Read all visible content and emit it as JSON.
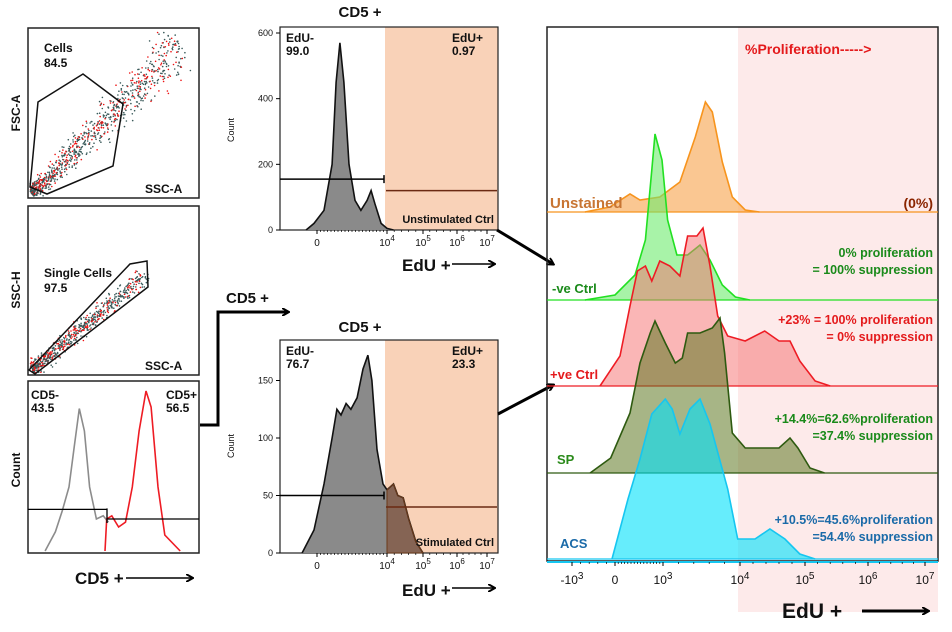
{
  "connector_label": "CD5 +",
  "chart_data": [
    {
      "type": "scatter",
      "title": "",
      "xlabel": "SSC-A",
      "ylabel": "FSC-A",
      "gate": {
        "name": "Cells",
        "value": "84.5"
      }
    },
    {
      "type": "scatter",
      "title": "",
      "xlabel": "SSC-A",
      "ylabel": "SSC-H",
      "gate": {
        "name": "Single Cells",
        "value": "97.5"
      }
    },
    {
      "type": "area",
      "title": "",
      "xlabel": "CD5 +",
      "ylabel": "Count",
      "gates": [
        {
          "name": "CD5-",
          "value": "43.5",
          "level": 26
        },
        {
          "name": "CD5+",
          "value": "56.5",
          "level": 20
        }
      ],
      "series": [
        {
          "name": "CD5-",
          "stroke": "#8c8c8c",
          "fill": "none",
          "points": [
            [
              10,
              0
            ],
            [
              16,
              12
            ],
            [
              20,
              25
            ],
            [
              24,
              40
            ],
            [
              27,
              65
            ],
            [
              30,
              89
            ],
            [
              33,
              75
            ],
            [
              36,
              40
            ],
            [
              40,
              20
            ],
            [
              44,
              22
            ],
            [
              47,
              18
            ]
          ]
        },
        {
          "name": "CD5+",
          "stroke": "#ee1c24",
          "fill": "none",
          "points": [
            [
              45,
              0
            ],
            [
              46,
              20
            ],
            [
              49,
              22
            ],
            [
              53,
              15
            ],
            [
              57,
              18
            ],
            [
              61,
              40
            ],
            [
              65,
              75
            ],
            [
              69,
              100
            ],
            [
              72,
              90
            ],
            [
              76,
              40
            ],
            [
              80,
              10
            ],
            [
              89,
              0
            ]
          ]
        }
      ]
    },
    {
      "type": "area",
      "title": "CD5 +",
      "xlabel": "EdU +",
      "ylabel": "Count",
      "ylim": [
        0,
        600
      ],
      "yticks": [
        0,
        200,
        400,
        600
      ],
      "xticks": [
        {
          "value": 0,
          "base": "0",
          "exp": ""
        },
        {
          "value": 4,
          "base": "10",
          "exp": "4"
        },
        {
          "value": 5,
          "base": "10",
          "exp": "5"
        },
        {
          "value": 6,
          "base": "10",
          "exp": "6"
        },
        {
          "value": 7,
          "base": "10",
          "exp": "7"
        }
      ],
      "gates": [
        {
          "name": "EdU-",
          "value": "99.0",
          "level": 155
        },
        {
          "name": "EdU+",
          "value": "0.97",
          "level": 120
        }
      ],
      "annotation": "Unstimulated Ctrl",
      "series": [
        {
          "name": "Unstimulated Ctrl",
          "stroke": "#111111",
          "fill": "#8a8a8a",
          "points": [
            [
              -0.33,
              0
            ],
            [
              -0.09,
              20
            ],
            [
              0.4,
              60
            ],
            [
              0.86,
              200
            ],
            [
              1.09,
              450
            ],
            [
              1.31,
              570
            ],
            [
              1.54,
              450
            ],
            [
              1.83,
              200
            ],
            [
              2.17,
              90
            ],
            [
              2.51,
              60
            ],
            [
              2.86,
              90
            ],
            [
              3.09,
              120
            ],
            [
              3.31,
              80
            ],
            [
              3.66,
              20
            ],
            [
              4,
              5
            ],
            [
              4.18,
              0
            ]
          ]
        }
      ]
    },
    {
      "type": "area",
      "title": "CD5 +",
      "xlabel": "EdU +",
      "ylabel": "Count",
      "ylim": [
        0,
        180
      ],
      "yticks": [
        0,
        50,
        100,
        150
      ],
      "xticks": [
        {
          "value": 0,
          "base": "0",
          "exp": ""
        },
        {
          "value": 4,
          "base": "10",
          "exp": "4"
        },
        {
          "value": 5,
          "base": "10",
          "exp": "5"
        },
        {
          "value": 6,
          "base": "10",
          "exp": "6"
        },
        {
          "value": 7,
          "base": "10",
          "exp": "7"
        }
      ],
      "gates": [
        {
          "name": "EdU-",
          "value": "76.7",
          "level": 50
        },
        {
          "name": "EdU+",
          "value": "23.3",
          "level": 40
        }
      ],
      "annotation": "Stimulated Ctrl",
      "series": [
        {
          "name": "Stimulated Ctrl",
          "stroke": "#111111",
          "fill": "#8a8a8a",
          "points": [
            [
              -0.45,
              0
            ],
            [
              -0.09,
              20
            ],
            [
              0.4,
              60
            ],
            [
              0.86,
              100
            ],
            [
              1.14,
              125
            ],
            [
              1.37,
              120
            ],
            [
              1.66,
              130
            ],
            [
              1.94,
              125
            ],
            [
              2.29,
              135
            ],
            [
              2.63,
              160
            ],
            [
              2.91,
              172
            ],
            [
              3.14,
              150
            ],
            [
              3.43,
              90
            ],
            [
              3.77,
              60
            ],
            [
              4,
              55
            ],
            [
              4.18,
              60
            ],
            [
              4.3,
              50
            ],
            [
              4.45,
              48
            ],
            [
              4.6,
              30
            ],
            [
              4.8,
              10
            ],
            [
              5,
              0
            ]
          ]
        }
      ]
    },
    {
      "type": "area",
      "title": "%Proliferation----->",
      "xlabel": "EdU +",
      "ylabel": "",
      "xticks": [
        {
          "value": -1,
          "base": "-10",
          "exp": "3"
        },
        {
          "value": 0,
          "base": "0",
          "exp": ""
        },
        {
          "value": 3,
          "base": "10",
          "exp": "3"
        },
        {
          "value": 4,
          "base": "10",
          "exp": "4"
        },
        {
          "value": 5,
          "base": "10",
          "exp": "5"
        },
        {
          "value": 6,
          "base": "10",
          "exp": "6"
        },
        {
          "value": 7,
          "base": "10",
          "exp": "7"
        }
      ],
      "series": [
        {
          "name": "Unstained",
          "label_color": "#c87533",
          "stroke": "#f7941d",
          "fill": "rgba(248,180,110,0.75)",
          "annotation": [
            "(0%)"
          ],
          "annotation_color": "#8b2500",
          "points": [
            [
              -0.7,
              0
            ],
            [
              -0.12,
              5
            ],
            [
              0.94,
              18
            ],
            [
              1.56,
              12
            ],
            [
              2.8,
              15
            ],
            [
              3.22,
              30
            ],
            [
              3.42,
              75
            ],
            [
              3.55,
              110
            ],
            [
              3.64,
              100
            ],
            [
              3.77,
              50
            ],
            [
              3.9,
              15
            ],
            [
              4.08,
              2
            ],
            [
              4.3,
              0
            ]
          ]
        },
        {
          "name": "-ve Ctrl",
          "label_color": "#1a8a1a",
          "stroke": "#22e022",
          "fill": "rgba(110,235,110,0.6)",
          "annotation": [
            "0% proliferation",
            "= 100% suppression"
          ],
          "annotation_color": "#1a8a1a",
          "points": [
            [
              -0.7,
              0
            ],
            [
              0,
              5
            ],
            [
              1.25,
              25
            ],
            [
              1.9,
              60
            ],
            [
              2.3,
              130
            ],
            [
              2.5,
              166
            ],
            [
              2.94,
              140
            ],
            [
              3.06,
              80
            ],
            [
              3.18,
              45
            ],
            [
              3.32,
              45
            ],
            [
              3.48,
              55
            ],
            [
              3.61,
              40
            ],
            [
              3.77,
              15
            ],
            [
              3.94,
              3
            ],
            [
              4.15,
              0
            ]
          ]
        },
        {
          "name": "+ve Ctrl",
          "label_color": "#e41a1c",
          "stroke": "#ee1c24",
          "fill": "rgba(245,110,110,0.5)",
          "annotation": [
            "+23% = 100% proliferation",
            "= 0% suppression"
          ],
          "annotation_color": "#e41a1c",
          "points": [
            [
              -0.35,
              0
            ],
            [
              0.31,
              30
            ],
            [
              0.94,
              80
            ],
            [
              1.4,
              115
            ],
            [
              1.9,
              120
            ],
            [
              2.3,
              105
            ],
            [
              2.8,
              125
            ],
            [
              3.09,
              120
            ],
            [
              3.22,
              110
            ],
            [
              3.32,
              150
            ],
            [
              3.44,
              150
            ],
            [
              3.52,
              158
            ],
            [
              3.61,
              120
            ],
            [
              3.71,
              70
            ],
            [
              3.84,
              50
            ],
            [
              4.08,
              45
            ],
            [
              4.38,
              55
            ],
            [
              4.6,
              45
            ],
            [
              4.77,
              45
            ],
            [
              4.92,
              25
            ],
            [
              5.16,
              5
            ],
            [
              5.4,
              0
            ]
          ]
        },
        {
          "name": "SP",
          "label_color": "#2a8a1a",
          "stroke": "#2e5a10",
          "fill": "rgba(95,120,35,0.55)",
          "annotation": [
            "+14.4%=62.6%proliferation",
            "=37.4% suppression"
          ],
          "annotation_color": "#1a8a1a",
          "points": [
            [
              -0.58,
              0
            ],
            [
              -0.1,
              15
            ],
            [
              0.94,
              60
            ],
            [
              1.56,
              110
            ],
            [
              2.2,
              140
            ],
            [
              2.5,
              152
            ],
            [
              3.03,
              130
            ],
            [
              3.16,
              110
            ],
            [
              3.25,
              115
            ],
            [
              3.32,
              140
            ],
            [
              3.48,
              140
            ],
            [
              3.64,
              145
            ],
            [
              3.74,
              155
            ],
            [
              3.8,
              120
            ],
            [
              3.9,
              40
            ],
            [
              4.08,
              25
            ],
            [
              4.6,
              25
            ],
            [
              4.77,
              35
            ],
            [
              4.89,
              25
            ],
            [
              5.08,
              5
            ],
            [
              5.31,
              0
            ]
          ]
        },
        {
          "name": "ACS",
          "label_color": "#1a6aa8",
          "stroke": "#16c6f0",
          "fill": "rgba(0,225,250,0.6)",
          "annotation": [
            "+10.5%=45.6%proliferation",
            "=54.4% suppression"
          ],
          "annotation_color": "#1a6aa8",
          "points": [
            [
              -0.07,
              0
            ],
            [
              0.81,
              60
            ],
            [
              1.56,
              100
            ],
            [
              2.3,
              145
            ],
            [
              3.03,
              160
            ],
            [
              3.12,
              150
            ],
            [
              3.22,
              125
            ],
            [
              3.35,
              150
            ],
            [
              3.48,
              160
            ],
            [
              3.61,
              135
            ],
            [
              3.84,
              70
            ],
            [
              3.97,
              20
            ],
            [
              4.23,
              20
            ],
            [
              4.46,
              30
            ],
            [
              4.69,
              20
            ],
            [
              4.92,
              5
            ],
            [
              5.16,
              0
            ]
          ]
        }
      ]
    }
  ]
}
